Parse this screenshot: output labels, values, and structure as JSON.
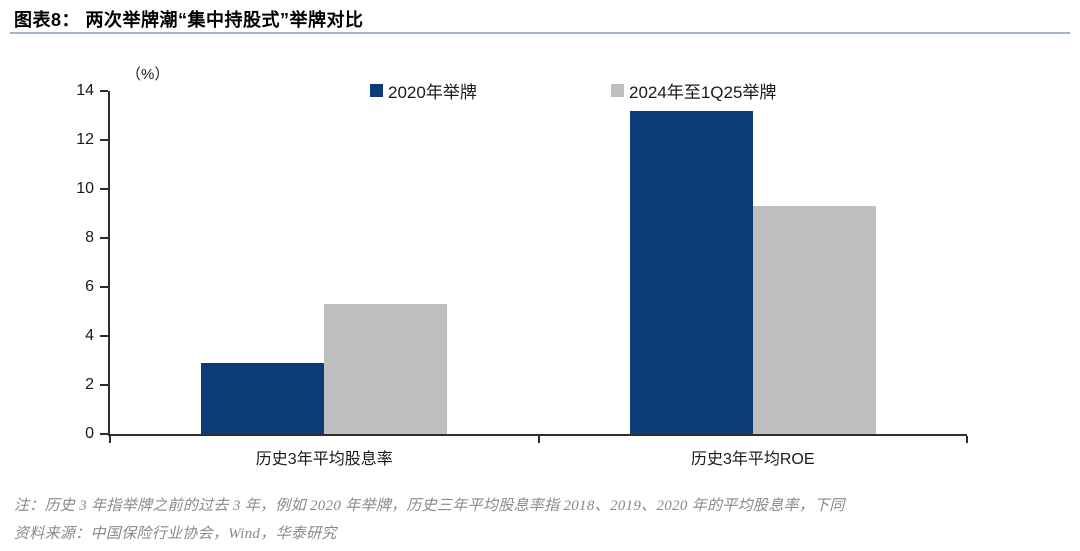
{
  "header": {
    "title": "图表8：  两次举牌潮“集中持股式”举牌对比",
    "underline_color": "#a6b6ca"
  },
  "chart_data": {
    "type": "bar",
    "title": "两次举牌潮“集中持股式”举牌对比",
    "unit_label": "（%）",
    "categories": [
      "历史3年平均股息率",
      "历史3年平均ROE"
    ],
    "series": [
      {
        "name": "2020年举牌",
        "color": "#0c3b78",
        "values": [
          2.9,
          13.2
        ]
      },
      {
        "name": "2024年至1Q25举牌",
        "color": "#bfbfbf",
        "values": [
          5.3,
          9.3
        ]
      }
    ],
    "ylim": [
      0,
      14
    ],
    "yticks": [
      0,
      2,
      4,
      6,
      8,
      10,
      12,
      14
    ],
    "grid": false,
    "legend_position": "top",
    "axis_color": "#2e2e2e"
  },
  "footer": {
    "note": "注：历史 3 年指举牌之前的过去 3 年，例如 2020 年举牌，历史三年平均股息率指 2018、2019、2020 年的平均股息率，下同",
    "source": "资料来源：中国保险行业协会，Wind，华泰研究"
  }
}
